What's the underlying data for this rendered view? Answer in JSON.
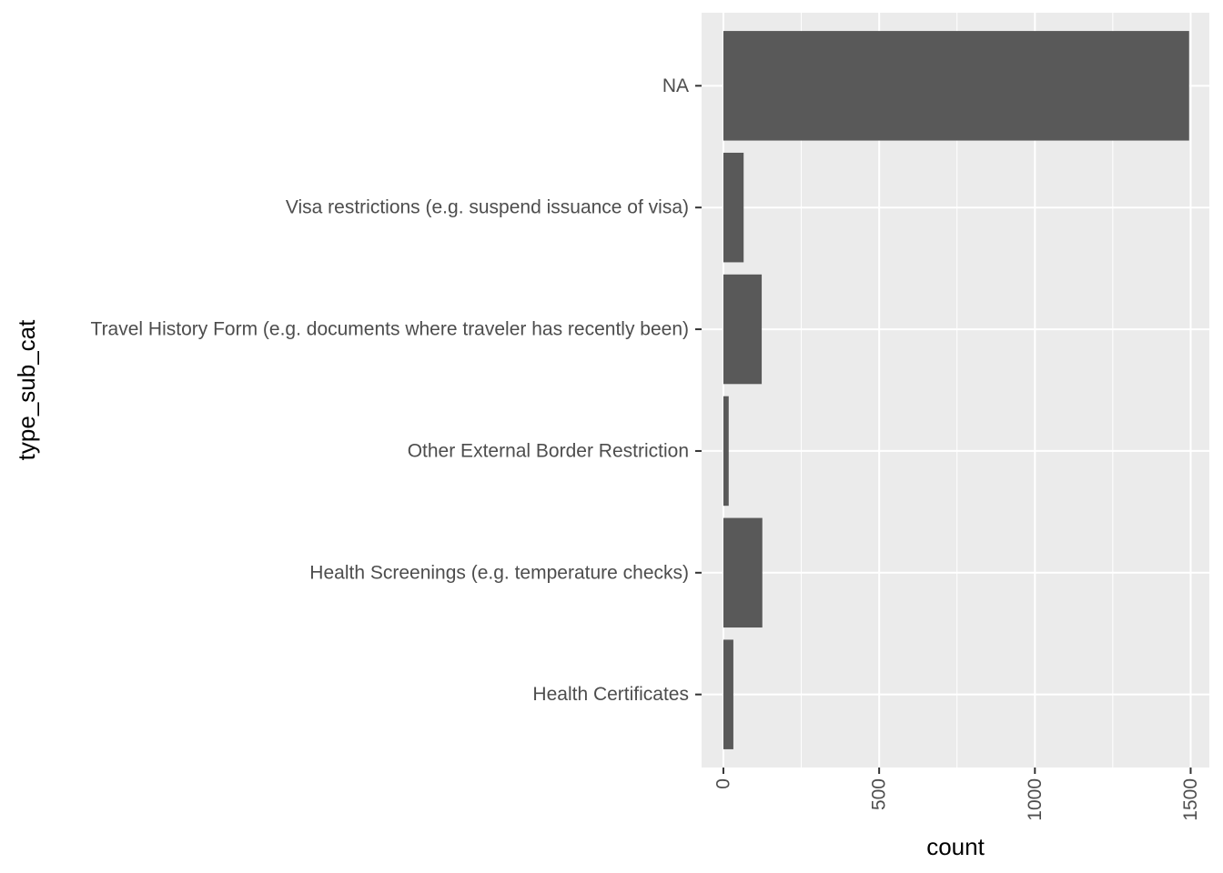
{
  "chart_data": {
    "type": "bar",
    "orientation": "horizontal",
    "categories": [
      "Health Certificates",
      "Health Screenings (e.g. temperature checks)",
      "Other External Border Restriction",
      "Travel History Form (e.g. documents where traveler has recently been)",
      "Visa restrictions (e.g. suspend issuance of visa)",
      "NA"
    ],
    "values": [
      32,
      125,
      17,
      123,
      65,
      1495
    ],
    "xlabel": "count",
    "ylabel": "type_sub_cat",
    "xlim": [
      -70,
      1560
    ],
    "xticks": [
      0,
      500,
      1000,
      1500
    ],
    "xtick_labels": [
      "0",
      "500",
      "1000",
      "1500"
    ],
    "grid": true,
    "colors": {
      "bar": "#595959",
      "panel": "#ebebeb",
      "grid": "#ffffff"
    }
  }
}
